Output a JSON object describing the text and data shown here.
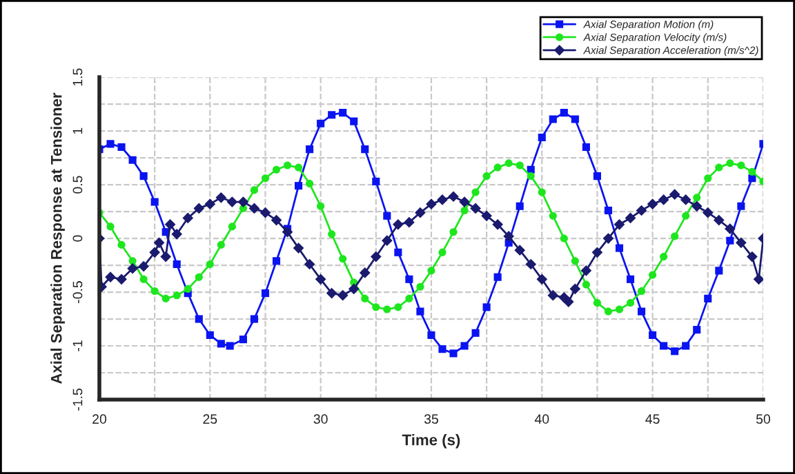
{
  "chart_data": {
    "type": "line",
    "xlabel": "Time (s)",
    "ylabel": "Axial Separation Response at Tensioner",
    "xlim": [
      20,
      50
    ],
    "xticks": [
      20,
      {
        "value": 22.5,
        "label": null
      },
      25,
      {
        "value": 27.5,
        "label": null
      },
      30,
      {
        "value": 32.5,
        "label": null
      },
      35,
      {
        "value": 37.5,
        "label": null
      },
      40,
      {
        "value": 42.5,
        "label": null
      },
      45,
      {
        "value": 47.5,
        "label": null
      },
      50
    ],
    "ylim": [
      -1.5,
      1.5
    ],
    "yticks": [
      -1.5,
      {
        "value": -1.25,
        "label": null
      },
      -1,
      {
        "value": -0.75,
        "label": null
      },
      -0.5,
      {
        "value": -0.25,
        "label": null
      },
      0,
      {
        "value": 0.25,
        "label": null
      },
      0.5,
      {
        "value": 0.75,
        "label": null
      },
      1,
      {
        "value": 1.25,
        "label": null
      },
      1.5
    ],
    "grid": true,
    "legend": "top right",
    "line_style": "solid",
    "series": [
      {
        "name": "Axial Separation Motion (m)",
        "color": "#0a14f0",
        "marker": "square",
        "x": [
          20,
          20.5,
          21,
          21.5,
          22,
          22.5,
          23,
          23.5,
          24,
          24.5,
          25,
          25.5,
          25.9,
          26.5,
          27,
          27.5,
          28,
          28.5,
          29,
          29.5,
          30,
          30.5,
          31,
          31.5,
          32,
          32.5,
          33,
          33.5,
          34,
          34.5,
          35,
          35.5,
          36,
          36.5,
          37,
          37.5,
          38,
          38.5,
          39,
          39.5,
          40,
          40.5,
          41,
          41.5,
          42,
          42.5,
          43,
          43.5,
          44,
          44.5,
          45,
          45.5,
          46,
          46.5,
          47,
          47.5,
          48,
          48.5,
          49,
          49.5,
          50
        ],
        "values": [
          0.83,
          0.88,
          0.85,
          0.73,
          0.58,
          0.34,
          0.06,
          -0.24,
          -0.51,
          -0.75,
          -0.9,
          -0.98,
          -1.0,
          -0.94,
          -0.75,
          -0.51,
          -0.21,
          0.09,
          0.49,
          0.83,
          1.07,
          1.15,
          1.17,
          1.09,
          0.83,
          0.53,
          0.21,
          -0.13,
          -0.38,
          -0.68,
          -0.9,
          -1.03,
          -1.07,
          -1.0,
          -0.88,
          -0.64,
          -0.36,
          -0.04,
          0.3,
          0.64,
          0.94,
          1.11,
          1.17,
          1.11,
          0.85,
          0.58,
          0.26,
          -0.09,
          -0.38,
          -0.68,
          -0.9,
          -1.0,
          -1.05,
          -1.0,
          -0.85,
          -0.56,
          -0.3,
          -0.02,
          0.3,
          0.56,
          0.88
        ]
      },
      {
        "name": "Axial Separation Velocity (m/s)",
        "color": "#1ee61e",
        "marker": "circle",
        "x": [
          20,
          20.5,
          21,
          21.5,
          22,
          22.5,
          23,
          23.5,
          24,
          24.5,
          25,
          25.5,
          26,
          26.5,
          27,
          27.5,
          28,
          28.5,
          29,
          29.5,
          30,
          30.5,
          31,
          31.5,
          32,
          32.5,
          33,
          33.5,
          34,
          34.5,
          35,
          35.5,
          36,
          36.5,
          37,
          37.5,
          38,
          38.5,
          39,
          39.5,
          40,
          40.5,
          41,
          41.5,
          42,
          42.5,
          43,
          43.5,
          44,
          44.5,
          45,
          45.5,
          46,
          46.5,
          47,
          47.5,
          48,
          48.5,
          49,
          49.5,
          50
        ],
        "values": [
          0.24,
          0.11,
          -0.06,
          -0.21,
          -0.38,
          -0.49,
          -0.56,
          -0.53,
          -0.47,
          -0.36,
          -0.24,
          -0.06,
          0.11,
          0.28,
          0.45,
          0.56,
          0.64,
          0.68,
          0.66,
          0.51,
          0.3,
          0.04,
          -0.19,
          -0.41,
          -0.56,
          -0.64,
          -0.66,
          -0.64,
          -0.56,
          -0.45,
          -0.3,
          -0.13,
          0.06,
          0.26,
          0.43,
          0.58,
          0.66,
          0.7,
          0.68,
          0.58,
          0.43,
          0.21,
          0.0,
          -0.21,
          -0.43,
          -0.6,
          -0.68,
          -0.66,
          -0.6,
          -0.49,
          -0.34,
          -0.17,
          0.02,
          0.21,
          0.38,
          0.56,
          0.66,
          0.7,
          0.68,
          0.62,
          0.53
        ]
      },
      {
        "name": "Axial Separation Acceleration (m/s^2)",
        "color": "#1a1a6e",
        "marker": "diamond",
        "x": [
          20,
          20.1,
          20.5,
          21,
          21.5,
          22,
          22.5,
          22.7,
          23,
          23.2,
          23.5,
          24,
          24.5,
          25,
          25.5,
          26,
          26.5,
          27,
          27.5,
          28,
          28.5,
          29,
          29.5,
          30,
          30.5,
          31,
          31.5,
          32,
          32.5,
          33,
          33.5,
          34,
          34.5,
          35,
          35.5,
          36,
          36.5,
          37,
          37.5,
          38,
          38.5,
          39,
          39.5,
          40,
          40.5,
          41,
          41.2,
          41.5,
          42,
          42.5,
          43,
          43.5,
          44,
          44.5,
          45,
          45.5,
          46,
          46.5,
          47,
          47.5,
          48,
          48.5,
          49,
          49.5,
          49.8,
          50
        ],
        "values": [
          0.0,
          -0.45,
          -0.36,
          -0.38,
          -0.28,
          -0.26,
          -0.13,
          -0.04,
          -0.17,
          0.13,
          0.04,
          0.19,
          0.28,
          0.32,
          0.38,
          0.34,
          0.34,
          0.28,
          0.24,
          0.17,
          0.06,
          -0.09,
          -0.24,
          -0.38,
          -0.51,
          -0.53,
          -0.47,
          -0.32,
          -0.17,
          -0.02,
          0.13,
          0.15,
          0.24,
          0.32,
          0.36,
          0.39,
          0.34,
          0.28,
          0.21,
          0.13,
          0.02,
          -0.11,
          -0.24,
          -0.38,
          -0.53,
          -0.55,
          -0.59,
          -0.47,
          -0.3,
          -0.13,
          0.0,
          0.13,
          0.19,
          0.26,
          0.32,
          0.36,
          0.41,
          0.36,
          0.3,
          0.24,
          0.17,
          0.09,
          -0.04,
          -0.17,
          -0.38,
          0.0
        ]
      }
    ]
  }
}
